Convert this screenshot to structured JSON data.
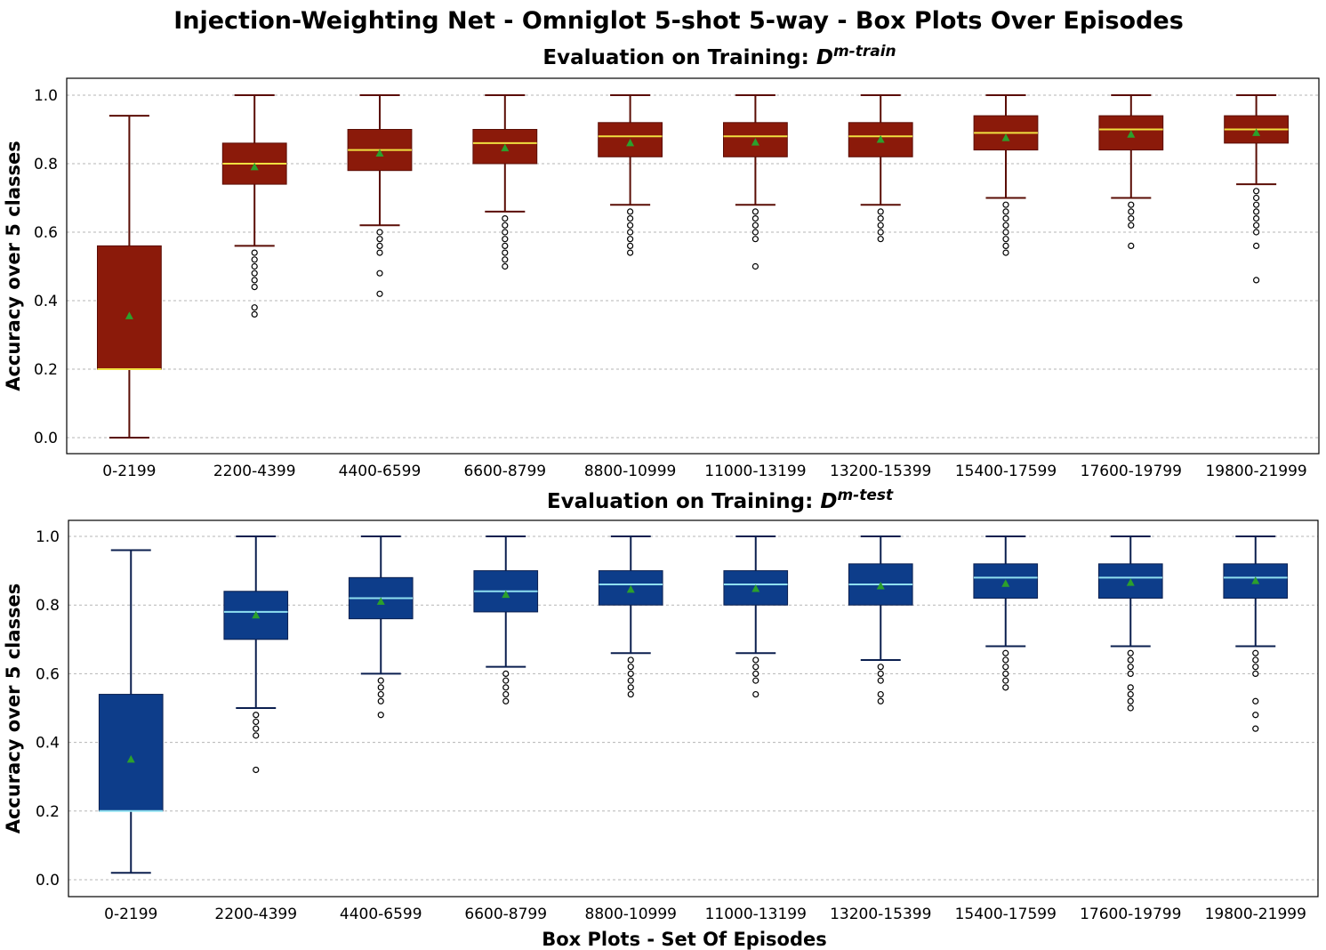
{
  "title": "Injection-Weighting Net - Omniglot 5-shot 5-way - Box Plots Over Episodes",
  "chart_data": [
    {
      "type": "box",
      "title_prefix": "Evaluation on Training: ",
      "title_symbol": "D",
      "title_superscript": "m-train",
      "xlabel": "",
      "ylabel": "Accuracy over 5 classes",
      "ylim": [
        0.0,
        1.0
      ],
      "yticks": [
        "0.0",
        "0.2",
        "0.4",
        "0.6",
        "0.8",
        "1.0"
      ],
      "grid": true,
      "colors": {
        "box": "#8b1a0a",
        "whisker": "#5a0d05",
        "median": "#f0e040",
        "mean": "#2ca02c"
      },
      "categories": [
        "0-2199",
        "2200-4399",
        "4400-6599",
        "6600-8799",
        "8800-10999",
        "11000-13199",
        "13200-15399",
        "15400-17599",
        "17600-19799",
        "19800-21999"
      ],
      "boxes": [
        {
          "whisker_low": 0.0,
          "q1": 0.2,
          "median": 0.2,
          "q3": 0.56,
          "whisker_high": 0.94,
          "mean": 0.355,
          "outliers": []
        },
        {
          "whisker_low": 0.56,
          "q1": 0.74,
          "median": 0.8,
          "q3": 0.86,
          "whisker_high": 1.0,
          "mean": 0.79,
          "outliers": [
            0.54,
            0.52,
            0.5,
            0.48,
            0.46,
            0.44,
            0.38,
            0.36
          ]
        },
        {
          "whisker_low": 0.62,
          "q1": 0.78,
          "median": 0.84,
          "q3": 0.9,
          "whisker_high": 1.0,
          "mean": 0.83,
          "outliers": [
            0.6,
            0.58,
            0.56,
            0.54,
            0.48,
            0.42
          ]
        },
        {
          "whisker_low": 0.66,
          "q1": 0.8,
          "median": 0.86,
          "q3": 0.9,
          "whisker_high": 1.0,
          "mean": 0.845,
          "outliers": [
            0.64,
            0.62,
            0.6,
            0.58,
            0.56,
            0.54,
            0.52,
            0.5
          ]
        },
        {
          "whisker_low": 0.68,
          "q1": 0.82,
          "median": 0.88,
          "q3": 0.92,
          "whisker_high": 1.0,
          "mean": 0.86,
          "outliers": [
            0.66,
            0.64,
            0.62,
            0.6,
            0.58,
            0.56,
            0.54
          ]
        },
        {
          "whisker_low": 0.68,
          "q1": 0.82,
          "median": 0.88,
          "q3": 0.92,
          "whisker_high": 1.0,
          "mean": 0.862,
          "outliers": [
            0.66,
            0.64,
            0.62,
            0.6,
            0.58,
            0.5
          ]
        },
        {
          "whisker_low": 0.68,
          "q1": 0.82,
          "median": 0.88,
          "q3": 0.92,
          "whisker_high": 1.0,
          "mean": 0.87,
          "outliers": [
            0.66,
            0.64,
            0.62,
            0.6,
            0.58
          ]
        },
        {
          "whisker_low": 0.7,
          "q1": 0.84,
          "median": 0.89,
          "q3": 0.94,
          "whisker_high": 1.0,
          "mean": 0.875,
          "outliers": [
            0.68,
            0.66,
            0.64,
            0.62,
            0.6,
            0.58,
            0.56,
            0.54
          ]
        },
        {
          "whisker_low": 0.7,
          "q1": 0.84,
          "median": 0.9,
          "q3": 0.94,
          "whisker_high": 1.0,
          "mean": 0.885,
          "outliers": [
            0.68,
            0.66,
            0.64,
            0.62,
            0.56
          ]
        },
        {
          "whisker_low": 0.74,
          "q1": 0.86,
          "median": 0.9,
          "q3": 0.94,
          "whisker_high": 1.0,
          "mean": 0.89,
          "outliers": [
            0.72,
            0.7,
            0.68,
            0.66,
            0.64,
            0.62,
            0.6,
            0.56,
            0.46
          ]
        }
      ]
    },
    {
      "type": "box",
      "title_prefix": "Evaluation on Training: ",
      "title_symbol": "D",
      "title_superscript": "m-test",
      "xlabel": "Box Plots - Set Of Episodes",
      "ylabel": "Accuracy over 5 classes",
      "ylim": [
        0.0,
        1.0
      ],
      "yticks": [
        "0.0",
        "0.2",
        "0.4",
        "0.6",
        "0.8",
        "1.0"
      ],
      "grid": true,
      "colors": {
        "box": "#0d3d8a",
        "whisker": "#0b1f4f",
        "median": "#8fe0f0",
        "mean": "#2ca02c"
      },
      "categories": [
        "0-2199",
        "2200-4399",
        "4400-6599",
        "6600-8799",
        "8800-10999",
        "11000-13199",
        "13200-15399",
        "15400-17599",
        "17600-19799",
        "19800-21999"
      ],
      "boxes": [
        {
          "whisker_low": 0.02,
          "q1": 0.2,
          "median": 0.2,
          "q3": 0.54,
          "whisker_high": 0.96,
          "mean": 0.35,
          "outliers": []
        },
        {
          "whisker_low": 0.5,
          "q1": 0.7,
          "median": 0.78,
          "q3": 0.84,
          "whisker_high": 1.0,
          "mean": 0.77,
          "outliers": [
            0.48,
            0.46,
            0.44,
            0.42,
            0.32
          ]
        },
        {
          "whisker_low": 0.6,
          "q1": 0.76,
          "median": 0.82,
          "q3": 0.88,
          "whisker_high": 1.0,
          "mean": 0.81,
          "outliers": [
            0.58,
            0.56,
            0.54,
            0.52,
            0.48
          ]
        },
        {
          "whisker_low": 0.62,
          "q1": 0.78,
          "median": 0.84,
          "q3": 0.9,
          "whisker_high": 1.0,
          "mean": 0.83,
          "outliers": [
            0.6,
            0.58,
            0.56,
            0.54,
            0.52
          ]
        },
        {
          "whisker_low": 0.66,
          "q1": 0.8,
          "median": 0.86,
          "q3": 0.9,
          "whisker_high": 1.0,
          "mean": 0.845,
          "outliers": [
            0.64,
            0.62,
            0.6,
            0.58,
            0.56,
            0.54
          ]
        },
        {
          "whisker_low": 0.66,
          "q1": 0.8,
          "median": 0.86,
          "q3": 0.9,
          "whisker_high": 1.0,
          "mean": 0.847,
          "outliers": [
            0.64,
            0.62,
            0.6,
            0.58,
            0.54
          ]
        },
        {
          "whisker_low": 0.64,
          "q1": 0.8,
          "median": 0.86,
          "q3": 0.92,
          "whisker_high": 1.0,
          "mean": 0.855,
          "outliers": [
            0.62,
            0.6,
            0.58,
            0.54,
            0.52
          ]
        },
        {
          "whisker_low": 0.68,
          "q1": 0.82,
          "median": 0.88,
          "q3": 0.92,
          "whisker_high": 1.0,
          "mean": 0.862,
          "outliers": [
            0.66,
            0.64,
            0.62,
            0.6,
            0.58,
            0.56
          ]
        },
        {
          "whisker_low": 0.68,
          "q1": 0.82,
          "median": 0.88,
          "q3": 0.92,
          "whisker_high": 1.0,
          "mean": 0.865,
          "outliers": [
            0.66,
            0.64,
            0.62,
            0.6,
            0.56,
            0.54,
            0.52,
            0.5
          ]
        },
        {
          "whisker_low": 0.68,
          "q1": 0.82,
          "median": 0.88,
          "q3": 0.92,
          "whisker_high": 1.0,
          "mean": 0.87,
          "outliers": [
            0.66,
            0.64,
            0.62,
            0.6,
            0.52,
            0.48,
            0.44
          ]
        }
      ]
    }
  ]
}
